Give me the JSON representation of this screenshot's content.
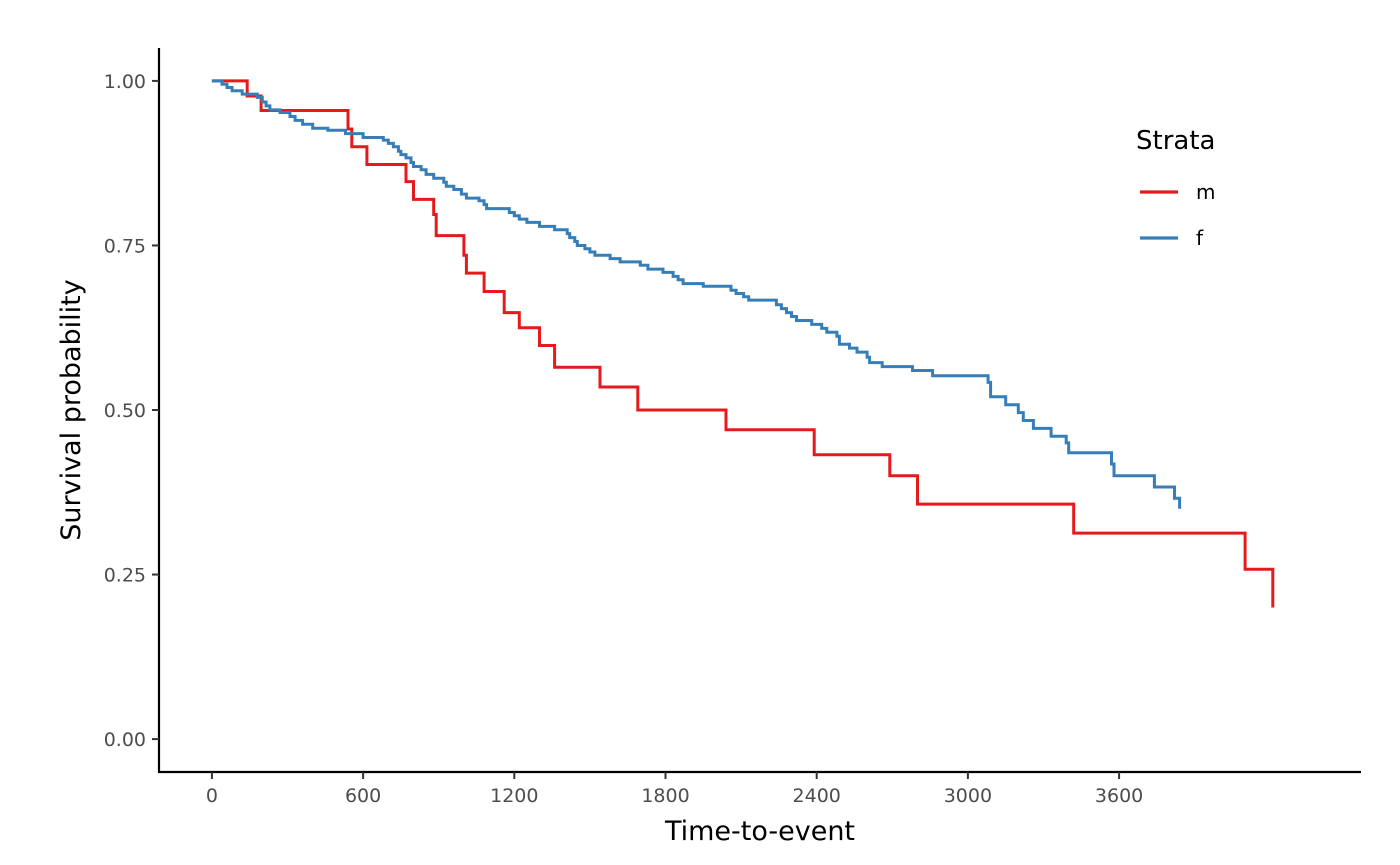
{
  "chart_data": {
    "type": "line",
    "subtype": "kaplan-meier step curve",
    "xlabel": "Time-to-event",
    "ylabel": "Survival probability",
    "xlim": [
      -210,
      4560
    ],
    "ylim": [
      -0.05,
      1.05
    ],
    "x_ticks": [
      0,
      600,
      1200,
      1800,
      2400,
      3000,
      3600
    ],
    "x_tick_labels": [
      "0",
      "600",
      "1200",
      "1800",
      "2400",
      "3000",
      "3600"
    ],
    "y_ticks": [
      0,
      0.25,
      0.5,
      0.75,
      1.0
    ],
    "y_tick_labels": [
      "0.00",
      "0.25",
      "0.50",
      "0.75",
      "1.00"
    ],
    "grid": false,
    "legend": {
      "title": "Strata",
      "position": "top-right"
    },
    "series": [
      {
        "name": "m",
        "color": "#e41a1c",
        "points": [
          [
            0,
            1.0
          ],
          [
            140,
            0.977
          ],
          [
            195,
            0.955
          ],
          [
            540,
            0.927
          ],
          [
            555,
            0.9
          ],
          [
            615,
            0.873
          ],
          [
            770,
            0.847
          ],
          [
            800,
            0.82
          ],
          [
            880,
            0.797
          ],
          [
            890,
            0.765
          ],
          [
            1000,
            0.735
          ],
          [
            1010,
            0.708
          ],
          [
            1080,
            0.68
          ],
          [
            1160,
            0.648
          ],
          [
            1220,
            0.625
          ],
          [
            1300,
            0.598
          ],
          [
            1360,
            0.565
          ],
          [
            1540,
            0.535
          ],
          [
            1690,
            0.5
          ],
          [
            2040,
            0.47
          ],
          [
            2390,
            0.432
          ],
          [
            2690,
            0.4
          ],
          [
            2800,
            0.357
          ],
          [
            3420,
            0.313
          ],
          [
            4100,
            0.258
          ],
          [
            4210,
            0.2
          ]
        ]
      },
      {
        "name": "f",
        "color": "#377eb8",
        "points": [
          [
            0,
            1.0
          ],
          [
            40,
            0.995
          ],
          [
            60,
            0.99
          ],
          [
            80,
            0.985
          ],
          [
            120,
            0.98
          ],
          [
            180,
            0.975
          ],
          [
            200,
            0.968
          ],
          [
            215,
            0.962
          ],
          [
            230,
            0.956
          ],
          [
            270,
            0.952
          ],
          [
            310,
            0.946
          ],
          [
            330,
            0.94
          ],
          [
            360,
            0.934
          ],
          [
            400,
            0.928
          ],
          [
            460,
            0.925
          ],
          [
            530,
            0.92
          ],
          [
            600,
            0.914
          ],
          [
            680,
            0.91
          ],
          [
            700,
            0.905
          ],
          [
            720,
            0.9
          ],
          [
            740,
            0.893
          ],
          [
            750,
            0.888
          ],
          [
            770,
            0.883
          ],
          [
            790,
            0.876
          ],
          [
            800,
            0.87
          ],
          [
            830,
            0.865
          ],
          [
            850,
            0.858
          ],
          [
            880,
            0.852
          ],
          [
            920,
            0.846
          ],
          [
            930,
            0.84
          ],
          [
            960,
            0.835
          ],
          [
            990,
            0.828
          ],
          [
            1010,
            0.822
          ],
          [
            1060,
            0.818
          ],
          [
            1080,
            0.812
          ],
          [
            1090,
            0.806
          ],
          [
            1180,
            0.8
          ],
          [
            1200,
            0.795
          ],
          [
            1220,
            0.79
          ],
          [
            1250,
            0.785
          ],
          [
            1300,
            0.779
          ],
          [
            1360,
            0.774
          ],
          [
            1410,
            0.768
          ],
          [
            1420,
            0.762
          ],
          [
            1440,
            0.756
          ],
          [
            1450,
            0.75
          ],
          [
            1480,
            0.745
          ],
          [
            1500,
            0.74
          ],
          [
            1520,
            0.735
          ],
          [
            1580,
            0.73
          ],
          [
            1620,
            0.725
          ],
          [
            1700,
            0.72
          ],
          [
            1730,
            0.714
          ],
          [
            1790,
            0.709
          ],
          [
            1830,
            0.703
          ],
          [
            1850,
            0.698
          ],
          [
            1870,
            0.692
          ],
          [
            1950,
            0.688
          ],
          [
            2060,
            0.682
          ],
          [
            2080,
            0.677
          ],
          [
            2110,
            0.672
          ],
          [
            2130,
            0.667
          ],
          [
            2240,
            0.66
          ],
          [
            2260,
            0.654
          ],
          [
            2280,
            0.648
          ],
          [
            2300,
            0.642
          ],
          [
            2320,
            0.636
          ],
          [
            2380,
            0.63
          ],
          [
            2420,
            0.624
          ],
          [
            2440,
            0.618
          ],
          [
            2480,
            0.612
          ],
          [
            2490,
            0.6
          ],
          [
            2530,
            0.594
          ],
          [
            2560,
            0.588
          ],
          [
            2600,
            0.58
          ],
          [
            2610,
            0.572
          ],
          [
            2660,
            0.566
          ],
          [
            2780,
            0.56
          ],
          [
            2860,
            0.552
          ],
          [
            3080,
            0.542
          ],
          [
            3090,
            0.52
          ],
          [
            3150,
            0.508
          ],
          [
            3200,
            0.496
          ],
          [
            3220,
            0.484
          ],
          [
            3260,
            0.472
          ],
          [
            3330,
            0.46
          ],
          [
            3390,
            0.45
          ],
          [
            3400,
            0.435
          ],
          [
            3570,
            0.418
          ],
          [
            3580,
            0.4
          ],
          [
            3740,
            0.383
          ],
          [
            3820,
            0.366
          ],
          [
            3840,
            0.35
          ]
        ]
      }
    ]
  }
}
